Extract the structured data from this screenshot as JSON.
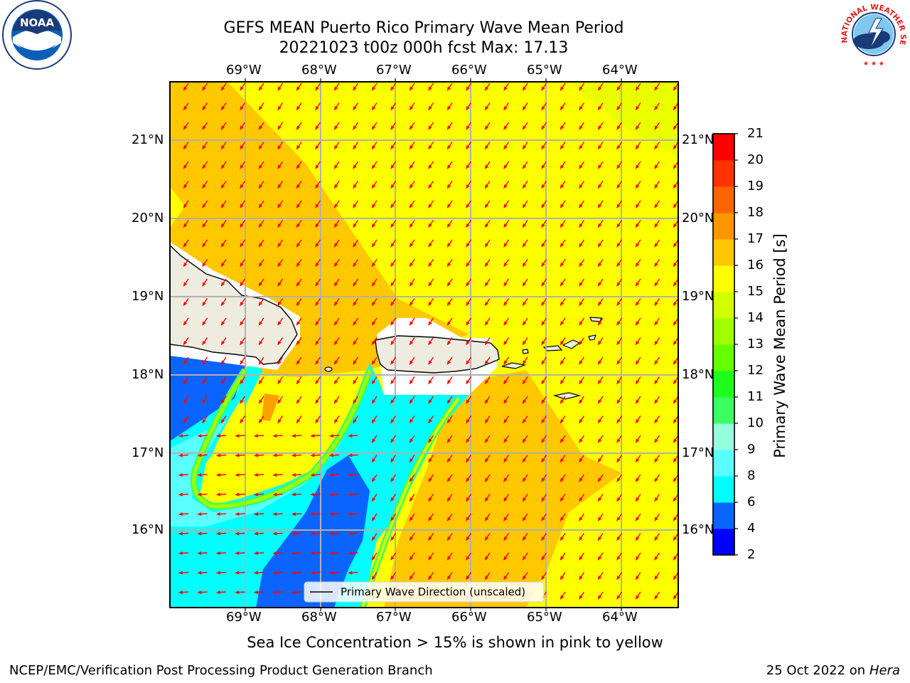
{
  "title": {
    "line1": "GEFS MEAN Puerto Rico Primary Wave Mean Period",
    "line2": "20221023 t00z 000h fcst   Max: 17.13"
  },
  "logos": {
    "noaa_text": "NOAA",
    "nws_text": "NATIONAL WEATHER SERVICE"
  },
  "axes": {
    "lon_labels": [
      "69°W",
      "68°W",
      "67°W",
      "66°W",
      "65°W",
      "64°W"
    ],
    "lat_labels": [
      "21°N",
      "20°N",
      "19°N",
      "18°N",
      "17°N",
      "16°N"
    ]
  },
  "legend": {
    "label": "Primary Wave Direction (unscaled)"
  },
  "colorbar": {
    "title": "Primary Wave Mean Period [s]",
    "levels": [
      2,
      4,
      6,
      8,
      9,
      10,
      11,
      12,
      13,
      14,
      15,
      16,
      17,
      18,
      19,
      20,
      21
    ],
    "colors": [
      "#0000ff",
      "#0a64ff",
      "#00ffff",
      "#5affff",
      "#96ffdc",
      "#3cff64",
      "#1eff1e",
      "#64ff00",
      "#a0ff00",
      "#d2ff00",
      "#ffff00",
      "#ffc800",
      "#ff9600",
      "#ff6400",
      "#ff3200",
      "#ff0000"
    ]
  },
  "note": "Sea Ice Concentration > 15% is shown in pink to yellow",
  "footer": {
    "left": "NCEP/EMC/Verification Post Processing Product Generation Branch",
    "date": "25 Oct 2022 on ",
    "machine": "Hera"
  },
  "colors": {
    "orange_field": "#ffc800",
    "yellow_field": "#ffff00",
    "land": "#eeecdf",
    "arrow": "#ff0000"
  }
}
